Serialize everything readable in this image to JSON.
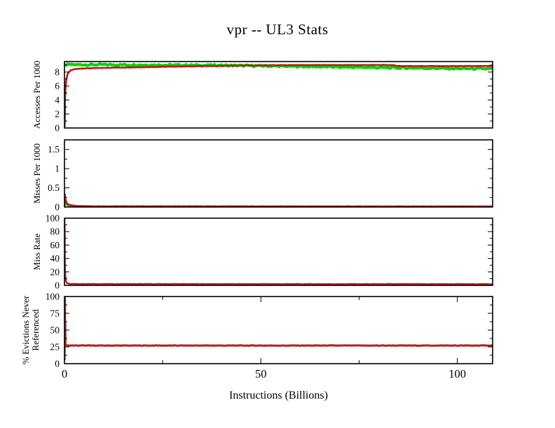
{
  "title": "vpr -- UL3  Stats",
  "xlabel": "Instructions (Billions)",
  "colors": {
    "red": "#c01818",
    "green": "#00d400",
    "axis": "#000000",
    "background": "#ffffff"
  },
  "chart_data": {
    "type": "line",
    "title": "vpr -- UL3  Stats",
    "xlabel": "Instructions (Billions)",
    "x_axis": {
      "min": 0,
      "max": 109,
      "major_ticks": [
        0,
        50,
        100
      ],
      "minor_ticks": [
        25,
        75
      ],
      "tick_labels": [
        "0",
        "50",
        "100"
      ]
    },
    "grid": false,
    "legend": "none",
    "panels": [
      {
        "ylabel": "Accesses Per 1000",
        "ylabel_lines": [
          "Accesses Per 1000"
        ],
        "ylim": [
          0,
          9.5
        ],
        "major_ticks": [
          0,
          2,
          4,
          6,
          8
        ],
        "tick_labels": [
          "0",
          "2",
          "4",
          "6",
          "8"
        ],
        "minor_ticks": [
          1,
          3,
          5,
          7,
          9
        ],
        "x_ticks_on_frame": false,
        "series": [
          {
            "name": "green",
            "color": "#00d400",
            "width": 4,
            "noise": 0.12,
            "points": [
              [
                0.1,
                9.05
              ],
              [
                10,
                9.05
              ],
              [
                25,
                9.0
              ],
              [
                40,
                8.95
              ],
              [
                55,
                8.85
              ],
              [
                70,
                8.72
              ],
              [
                85,
                8.6
              ],
              [
                100,
                8.5
              ],
              [
                109,
                8.45
              ]
            ]
          },
          {
            "name": "red",
            "color": "#c01818",
            "width": 2.6,
            "noise": 0.03,
            "points": [
              [
                0.05,
                0.2
              ],
              [
                0.1,
                2.0
              ],
              [
                0.15,
                4.0
              ],
              [
                0.25,
                5.5
              ],
              [
                0.4,
                6.6
              ],
              [
                0.7,
                7.5
              ],
              [
                1,
                7.9
              ],
              [
                1.5,
                8.2
              ],
              [
                2.5,
                8.4
              ],
              [
                4,
                8.5
              ],
              [
                7,
                8.55
              ],
              [
                12,
                8.62
              ],
              [
                20,
                8.7
              ],
              [
                30,
                8.8
              ],
              [
                40,
                8.88
              ],
              [
                50,
                8.95
              ],
              [
                60,
                9.0
              ],
              [
                83,
                9.0
              ],
              [
                85,
                8.87
              ],
              [
                95,
                8.85
              ],
              [
                109,
                8.85
              ]
            ]
          }
        ]
      },
      {
        "ylabel": "Misses Per 1000",
        "ylabel_lines": [
          "Misses Per 1000"
        ],
        "ylim": [
          0,
          1.75
        ],
        "major_ticks": [
          0,
          0.5,
          1,
          1.5
        ],
        "tick_labels": [
          "0",
          "0.5",
          "1",
          "1.5"
        ],
        "minor_ticks": [
          0.25,
          0.75,
          1.25,
          1.75
        ],
        "x_ticks_on_frame": false,
        "series": [
          {
            "name": "green",
            "color": "#00d400",
            "width": 2.6,
            "noise": 0.004,
            "points": [
              [
                0.05,
                0.01
              ],
              [
                0.1,
                0.12
              ],
              [
                0.3,
                0.08
              ],
              [
                0.8,
                0.045
              ],
              [
                1.5,
                0.025
              ],
              [
                3,
                0.012
              ],
              [
                8,
                0.008
              ],
              [
                109,
                0.008
              ]
            ]
          },
          {
            "name": "red",
            "color": "#c01818",
            "width": 2.6,
            "noise": 0.004,
            "points": [
              [
                0.05,
                0.02
              ],
              [
                0.1,
                0.33
              ],
              [
                0.15,
                0.25
              ],
              [
                0.3,
                0.18
              ],
              [
                0.5,
                0.12
              ],
              [
                0.8,
                0.08
              ],
              [
                1.2,
                0.06
              ],
              [
                2,
                0.04
              ],
              [
                3,
                0.03
              ],
              [
                5,
                0.025
              ],
              [
                8,
                0.02
              ],
              [
                109,
                0.015
              ]
            ]
          }
        ]
      },
      {
        "ylabel": "Miss Rate",
        "ylabel_lines": [
          "Miss Rate"
        ],
        "ylim": [
          0,
          100
        ],
        "major_ticks": [
          0,
          20,
          40,
          60,
          80,
          100
        ],
        "tick_labels": [
          "0",
          "20",
          "40",
          "60",
          "80",
          "100"
        ],
        "minor_ticks": [
          10,
          30,
          50,
          70,
          90
        ],
        "x_ticks_on_frame": false,
        "series": [
          {
            "name": "red",
            "color": "#c01818",
            "width": 2.4,
            "noise": 0.3,
            "points": [
              [
                0.02,
                100
              ],
              [
                0.05,
                65
              ],
              [
                0.08,
                88
              ],
              [
                0.1,
                40
              ],
              [
                0.15,
                25
              ],
              [
                0.25,
                12
              ],
              [
                0.4,
                6
              ],
              [
                0.7,
                3
              ],
              [
                1.5,
                2
              ],
              [
                109,
                1.8
              ]
            ]
          }
        ]
      },
      {
        "ylabel": "% Evictions Never Referenced",
        "ylabel_lines": [
          "% Evictions Never",
          "Referenced"
        ],
        "ylim": [
          0,
          100
        ],
        "major_ticks": [
          0,
          25,
          50,
          75,
          100
        ],
        "tick_labels": [
          "0",
          "25",
          "50",
          "75",
          "100"
        ],
        "minor_ticks": [
          12.5,
          37.5,
          62.5,
          87.5
        ],
        "x_ticks_on_frame": true,
        "series": [
          {
            "name": "red",
            "color": "#c01818",
            "width": 3,
            "noise": 0.3,
            "points": [
              [
                0.02,
                5
              ],
              [
                0.04,
                95
              ],
              [
                0.06,
                40
              ],
              [
                0.08,
                100
              ],
              [
                0.1,
                55
              ],
              [
                0.12,
                97
              ],
              [
                0.15,
                35
              ],
              [
                0.2,
                60
              ],
              [
                0.25,
                28
              ],
              [
                0.35,
                27.5
              ],
              [
                1,
                27
              ],
              [
                109,
                27
              ]
            ]
          }
        ]
      }
    ]
  }
}
